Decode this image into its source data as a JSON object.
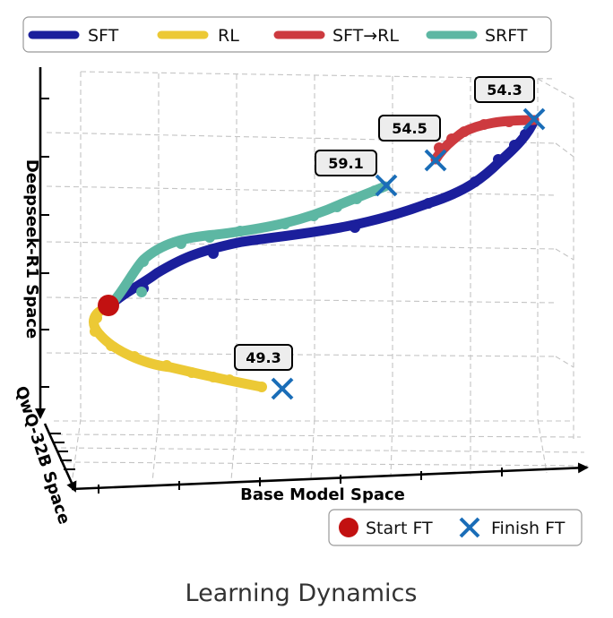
{
  "caption": "Learning Dynamics",
  "legend_methods": [
    {
      "label": "SFT",
      "color": "#1b1f9c"
    },
    {
      "label": "RL",
      "color": "#ecc935"
    },
    {
      "label": "SFT→RL",
      "color": "#cd3a3f"
    },
    {
      "label": "SRFT",
      "color": "#5db7a3"
    }
  ],
  "legend_markers": {
    "start_label": "Start FT",
    "finish_label": "Finish FT",
    "start_color": "#c21111",
    "finish_color": "#1a6db8"
  },
  "chart_data": {
    "type": "line",
    "title": "",
    "xlabel": "Base Model Space",
    "ylabel": "Deepseek-R1 Space",
    "zlabel": "QwQ-32B Space",
    "grid": true,
    "legend_position": "top",
    "series": [
      {
        "name": "SFT",
        "final_value": 54.3
      },
      {
        "name": "RL",
        "final_value": 49.3
      },
      {
        "name": "SFT→RL",
        "final_value": 54.5
      },
      {
        "name": "SRFT",
        "final_value": 59.1
      }
    ]
  }
}
